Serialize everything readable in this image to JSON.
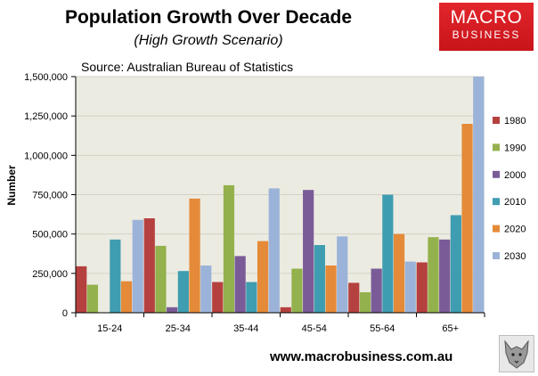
{
  "chart_data": {
    "type": "bar",
    "title": "Population Growth Over Decade",
    "subtitle": "(High Growth Scenario)",
    "source": "Source: Australian Bureau of Statistics",
    "xlabel": "",
    "ylabel": "Number",
    "ylim": [
      0,
      1500000
    ],
    "yticks": [
      0,
      250000,
      500000,
      750000,
      1000000,
      1250000,
      1500000
    ],
    "ytick_labels": [
      "0",
      "250,000",
      "500,000",
      "750,000",
      "1,000,000",
      "1,250,000",
      "1,500,000"
    ],
    "categories": [
      "15-24",
      "25-34",
      "35-44",
      "45-54",
      "55-64",
      "65+"
    ],
    "legend_position": "right",
    "series": [
      {
        "name": "1980",
        "color": "#b5413f",
        "values": [
          295000,
          600000,
          195000,
          35000,
          190000,
          320000
        ]
      },
      {
        "name": "1990",
        "color": "#93b14c",
        "values": [
          178000,
          425000,
          810000,
          280000,
          130000,
          480000
        ]
      },
      {
        "name": "2000",
        "color": "#7a5b98",
        "values": [
          0,
          35000,
          360000,
          780000,
          280000,
          465000
        ]
      },
      {
        "name": "2010",
        "color": "#3f9db1",
        "values": [
          465000,
          265000,
          195000,
          430000,
          750000,
          620000
        ]
      },
      {
        "name": "2020",
        "color": "#e48a38",
        "values": [
          200000,
          725000,
          455000,
          300000,
          500000,
          1200000
        ]
      },
      {
        "name": "2030",
        "color": "#9cb3d9",
        "values": [
          590000,
          300000,
          790000,
          485000,
          325000,
          1500000
        ]
      }
    ]
  },
  "branding": {
    "logo_line1": "MACRO",
    "logo_line2": "BUSINESS",
    "website": "www.macrobusiness.com.au",
    "brand_color": "#d21c22",
    "badge_icon": "wolf-icon"
  }
}
